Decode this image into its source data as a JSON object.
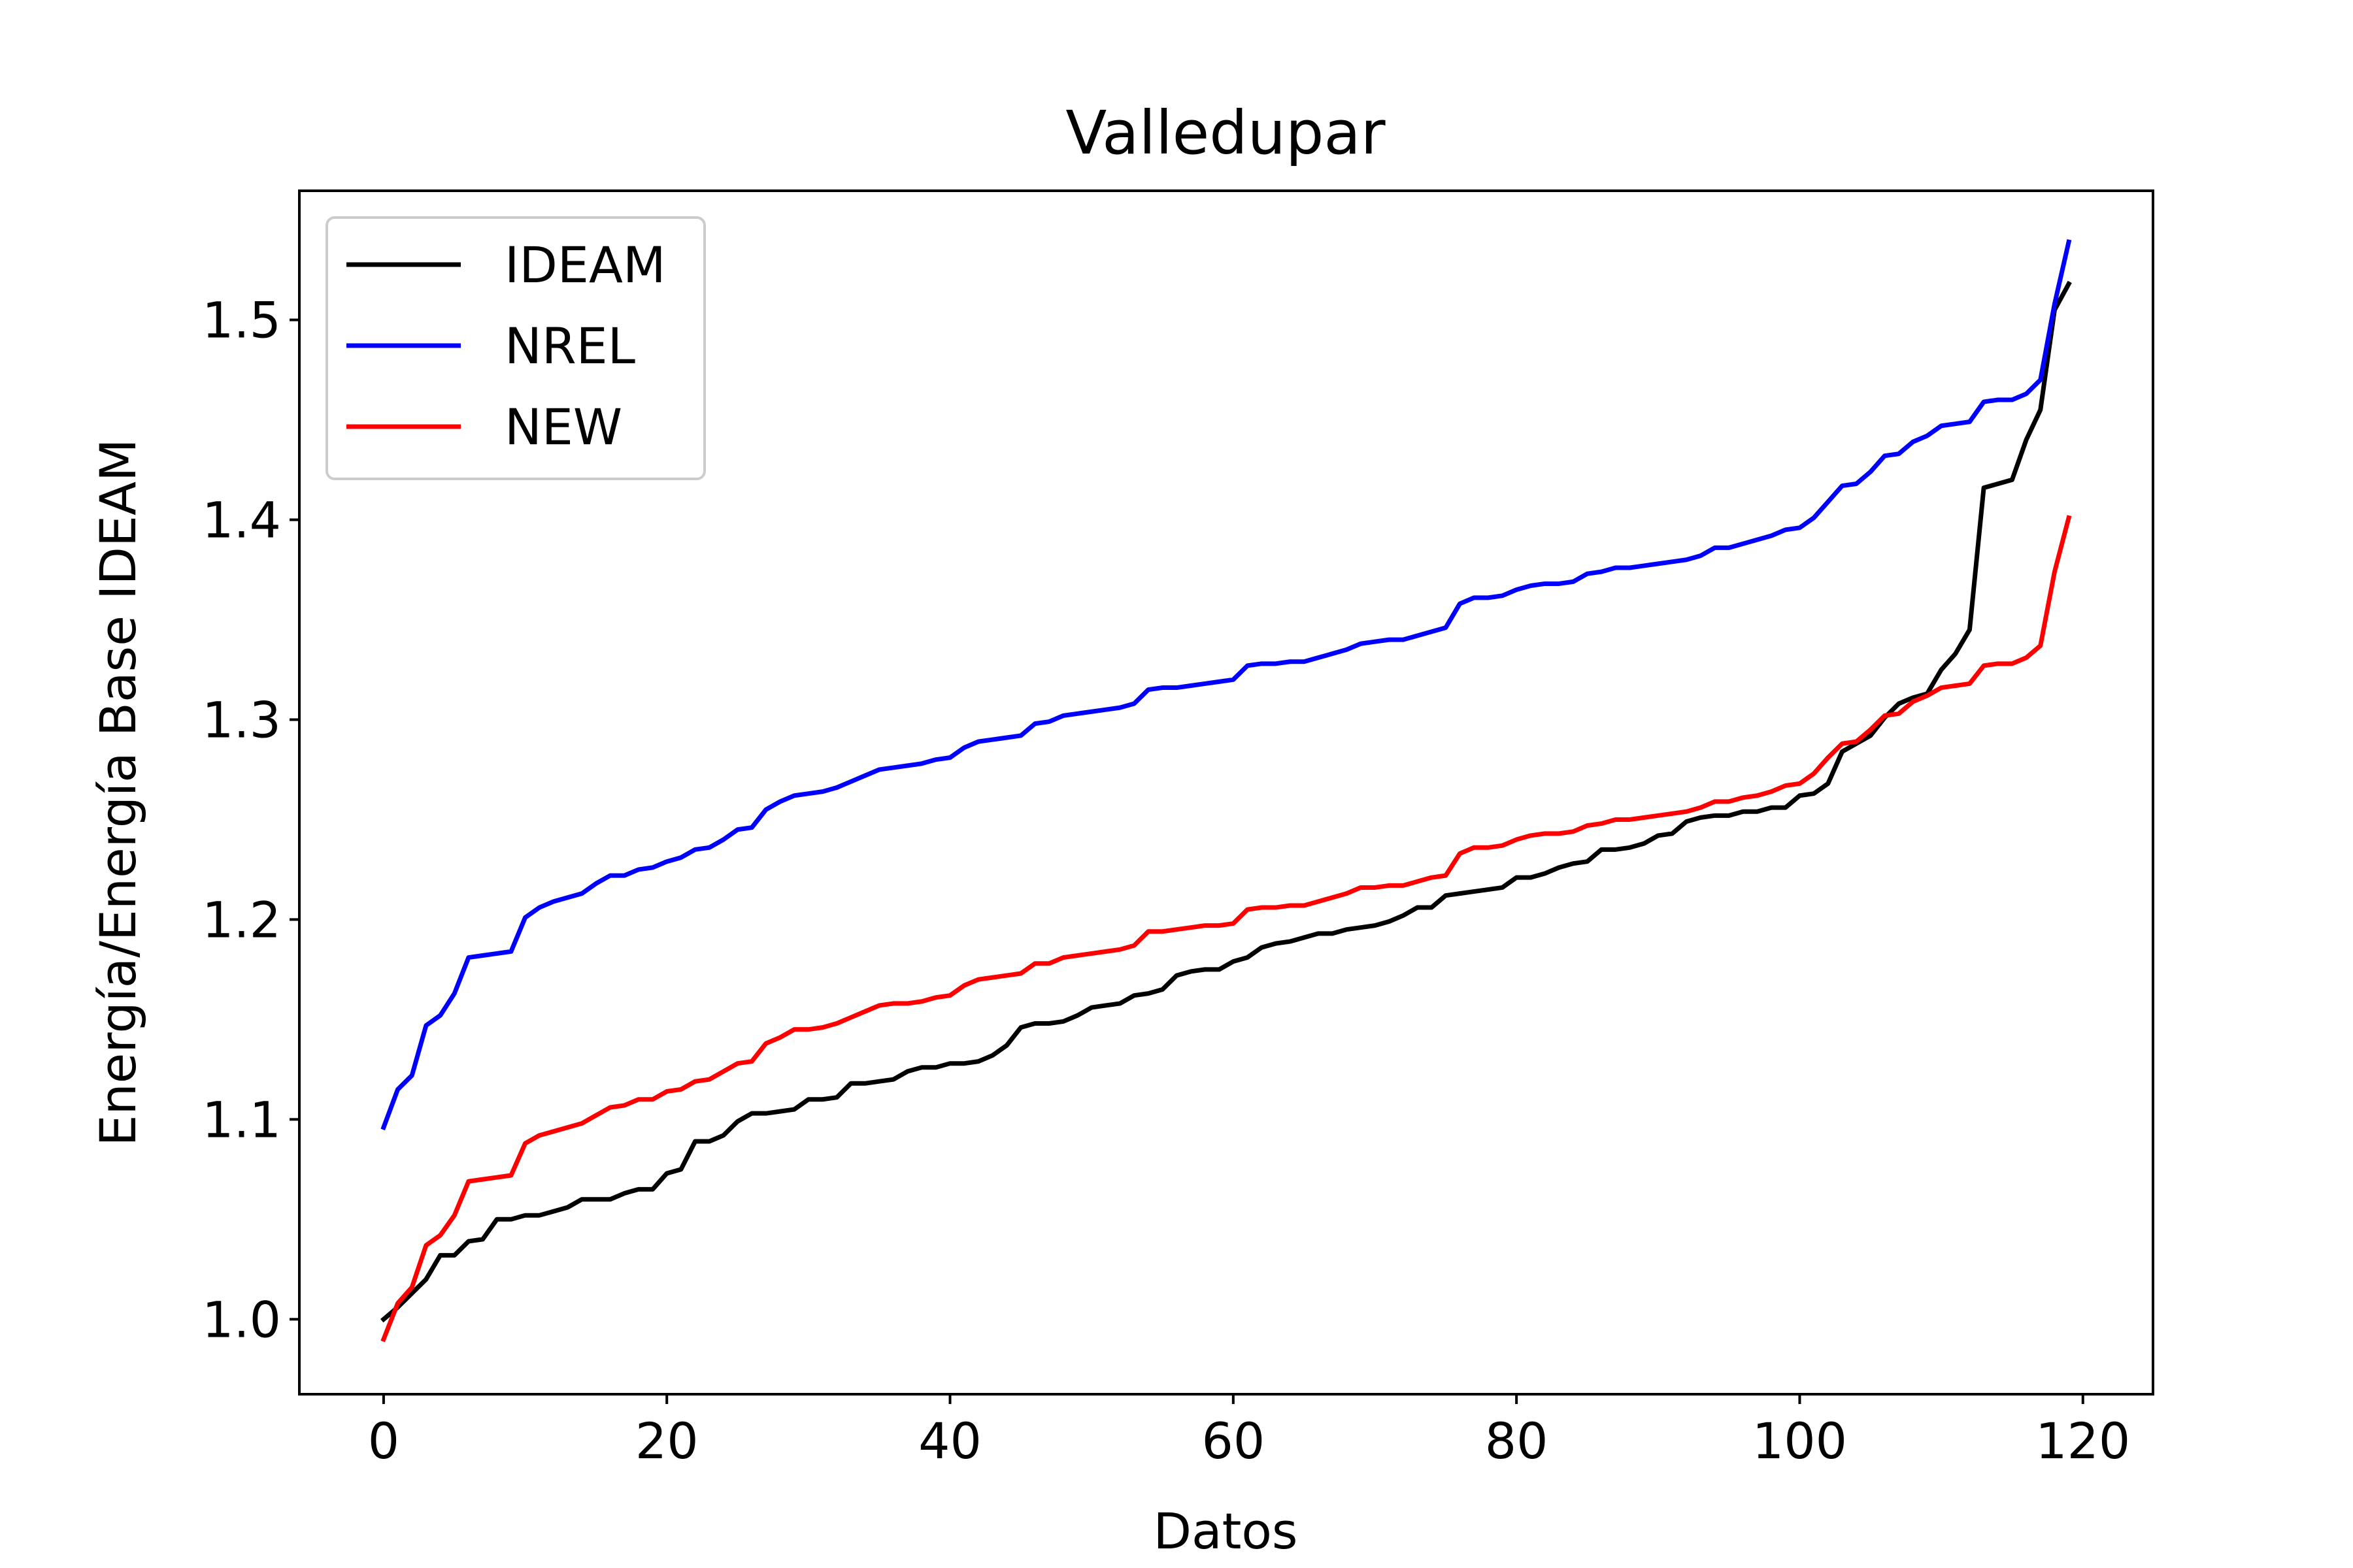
{
  "chart_data": {
    "type": "line",
    "title": "Valledupar",
    "xlabel": "Datos",
    "ylabel": "Energía/Energía Base IDEAM",
    "xlim": [
      -5.95,
      124.95
    ],
    "ylim": [
      0.9625,
      1.5646
    ],
    "xticks": [
      0,
      20,
      40,
      60,
      80,
      100,
      120
    ],
    "xtick_labels": [
      "0",
      "20",
      "40",
      "60",
      "80",
      "100",
      "120"
    ],
    "yticks": [
      1.0,
      1.1,
      1.2,
      1.3,
      1.4,
      1.5
    ],
    "ytick_labels": [
      "1.0",
      "1.1",
      "1.2",
      "1.3",
      "1.4",
      "1.5"
    ],
    "grid": false,
    "legend_position": "top-left",
    "series": [
      {
        "name": "IDEAM",
        "color": "#000000",
        "x_start": 0,
        "values": [
          1.0,
          1.006,
          1.013,
          1.02,
          1.032,
          1.032,
          1.039,
          1.04,
          1.05,
          1.05,
          1.052,
          1.052,
          1.054,
          1.056,
          1.06,
          1.06,
          1.06,
          1.063,
          1.065,
          1.065,
          1.073,
          1.075,
          1.089,
          1.089,
          1.092,
          1.099,
          1.103,
          1.103,
          1.104,
          1.105,
          1.11,
          1.11,
          1.111,
          1.118,
          1.118,
          1.119,
          1.12,
          1.124,
          1.126,
          1.126,
          1.128,
          1.128,
          1.129,
          1.132,
          1.137,
          1.146,
          1.148,
          1.148,
          1.149,
          1.152,
          1.156,
          1.157,
          1.158,
          1.162,
          1.163,
          1.165,
          1.172,
          1.174,
          1.175,
          1.175,
          1.179,
          1.181,
          1.186,
          1.188,
          1.189,
          1.191,
          1.193,
          1.193,
          1.195,
          1.196,
          1.197,
          1.199,
          1.202,
          1.206,
          1.206,
          1.212,
          1.213,
          1.214,
          1.215,
          1.216,
          1.221,
          1.221,
          1.223,
          1.226,
          1.228,
          1.229,
          1.235,
          1.235,
          1.236,
          1.238,
          1.242,
          1.243,
          1.249,
          1.251,
          1.252,
          1.252,
          1.254,
          1.254,
          1.256,
          1.256,
          1.262,
          1.263,
          1.268,
          1.284,
          1.288,
          1.292,
          1.301,
          1.308,
          1.311,
          1.313,
          1.325,
          1.333,
          1.345,
          1.416,
          1.418,
          1.42,
          1.44,
          1.455,
          1.505,
          1.518
        ]
      },
      {
        "name": "NREL",
        "color": "#0000ff",
        "x_start": 0,
        "values": [
          1.096,
          1.115,
          1.122,
          1.147,
          1.152,
          1.163,
          1.181,
          1.182,
          1.183,
          1.184,
          1.201,
          1.206,
          1.209,
          1.211,
          1.213,
          1.218,
          1.222,
          1.222,
          1.225,
          1.226,
          1.229,
          1.231,
          1.235,
          1.236,
          1.24,
          1.245,
          1.246,
          1.255,
          1.259,
          1.262,
          1.263,
          1.264,
          1.266,
          1.269,
          1.272,
          1.275,
          1.276,
          1.277,
          1.278,
          1.28,
          1.281,
          1.286,
          1.289,
          1.29,
          1.291,
          1.292,
          1.298,
          1.299,
          1.302,
          1.303,
          1.304,
          1.305,
          1.306,
          1.308,
          1.315,
          1.316,
          1.316,
          1.317,
          1.318,
          1.319,
          1.32,
          1.327,
          1.328,
          1.328,
          1.329,
          1.329,
          1.331,
          1.333,
          1.335,
          1.338,
          1.339,
          1.34,
          1.34,
          1.342,
          1.344,
          1.346,
          1.358,
          1.361,
          1.361,
          1.362,
          1.365,
          1.367,
          1.368,
          1.368,
          1.369,
          1.373,
          1.374,
          1.376,
          1.376,
          1.377,
          1.378,
          1.379,
          1.38,
          1.382,
          1.386,
          1.386,
          1.388,
          1.39,
          1.392,
          1.395,
          1.396,
          1.401,
          1.409,
          1.417,
          1.418,
          1.424,
          1.432,
          1.433,
          1.439,
          1.442,
          1.447,
          1.448,
          1.449,
          1.459,
          1.46,
          1.46,
          1.463,
          1.47,
          1.508,
          1.539
        ]
      },
      {
        "name": "NEW",
        "color": "#ff0000",
        "x_start": 0,
        "values": [
          0.99,
          1.008,
          1.016,
          1.037,
          1.042,
          1.052,
          1.069,
          1.07,
          1.071,
          1.072,
          1.088,
          1.092,
          1.094,
          1.096,
          1.098,
          1.102,
          1.106,
          1.107,
          1.11,
          1.11,
          1.114,
          1.115,
          1.119,
          1.12,
          1.124,
          1.128,
          1.129,
          1.138,
          1.141,
          1.145,
          1.145,
          1.146,
          1.148,
          1.151,
          1.154,
          1.157,
          1.158,
          1.158,
          1.159,
          1.161,
          1.162,
          1.167,
          1.17,
          1.171,
          1.172,
          1.173,
          1.178,
          1.178,
          1.181,
          1.182,
          1.183,
          1.184,
          1.185,
          1.187,
          1.194,
          1.194,
          1.195,
          1.196,
          1.197,
          1.197,
          1.198,
          1.205,
          1.206,
          1.206,
          1.207,
          1.207,
          1.209,
          1.211,
          1.213,
          1.216,
          1.216,
          1.217,
          1.217,
          1.219,
          1.221,
          1.222,
          1.233,
          1.236,
          1.236,
          1.237,
          1.24,
          1.242,
          1.243,
          1.243,
          1.244,
          1.247,
          1.248,
          1.25,
          1.25,
          1.251,
          1.252,
          1.253,
          1.254,
          1.256,
          1.259,
          1.259,
          1.261,
          1.262,
          1.264,
          1.267,
          1.268,
          1.273,
          1.281,
          1.288,
          1.289,
          1.295,
          1.302,
          1.303,
          1.309,
          1.312,
          1.316,
          1.317,
          1.318,
          1.327,
          1.328,
          1.328,
          1.331,
          1.337,
          1.374,
          1.401
        ]
      }
    ]
  }
}
